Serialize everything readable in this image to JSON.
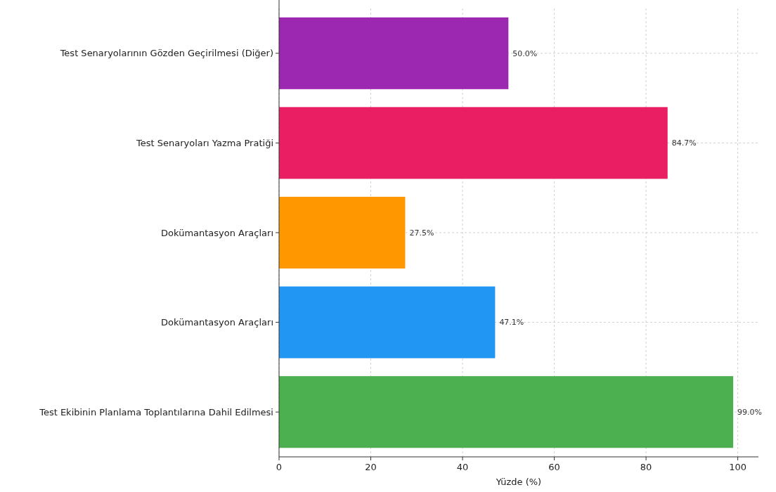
{
  "chart_data": {
    "type": "bar",
    "orientation": "horizontal",
    "xlabel": "Yüzde (%)",
    "categories": [
      "Test Senaryolarının Gözden Geçirilmesi (Diğer)",
      "Test Senaryoları Yazma Pratiği",
      "Dokümantasyon Araçları",
      "Dokümantasyon Araçları",
      "Test Ekibinin Planlama Toplantılarına Dahil Edilmesi"
    ],
    "values": [
      50.0,
      84.7,
      27.5,
      47.1,
      99.0
    ],
    "colors": [
      "#9c27b0",
      "#e91e63",
      "#ff9800",
      "#2196f3",
      "#4caf50"
    ],
    "value_labels": [
      "50.0%",
      "84.7%",
      "27.5%",
      "47.1%",
      "99.0%"
    ],
    "xlim": [
      0,
      104.5
    ],
    "xticks": [
      0,
      20,
      40,
      60,
      80,
      100
    ],
    "grid": true
  }
}
